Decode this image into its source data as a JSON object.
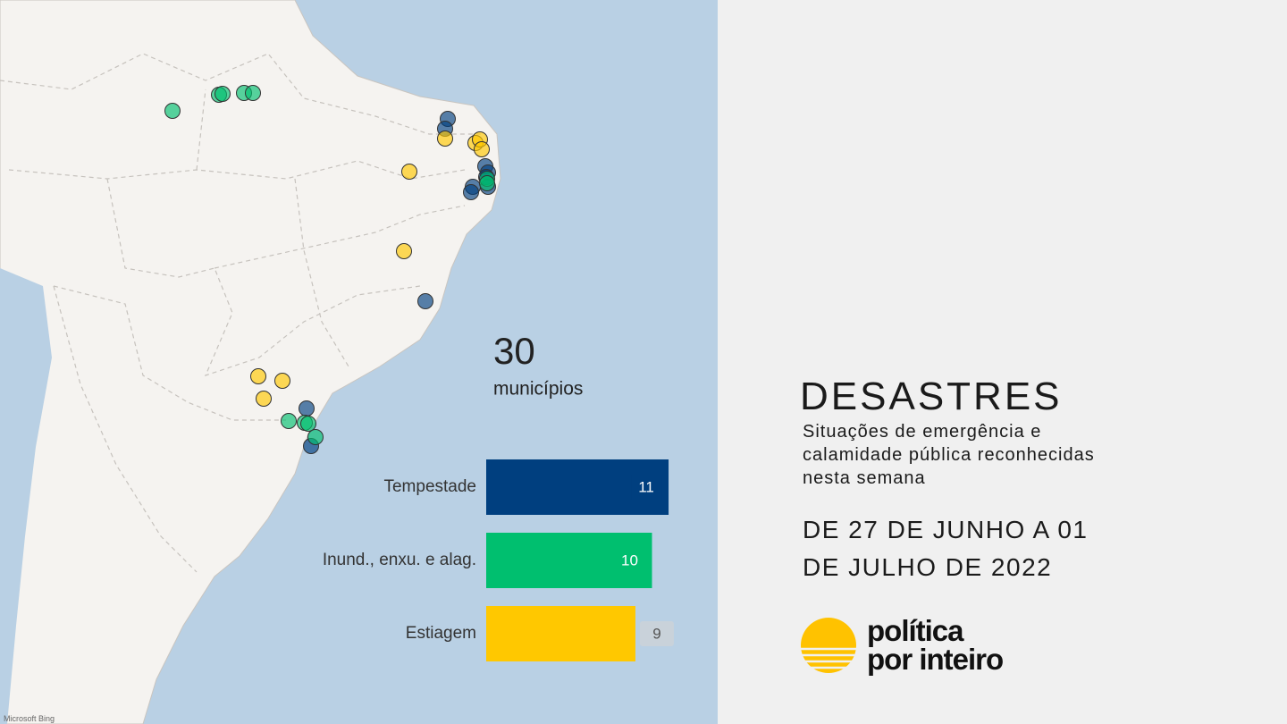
{
  "map": {
    "total": 30,
    "total_label": "municípios",
    "attribution": "Microsoft Bing"
  },
  "chart_data": {
    "type": "bar",
    "orientation": "horizontal",
    "categories": [
      "Tempestade",
      "Inund., enxu. e alag.",
      "Estiagem"
    ],
    "values": [
      11,
      10,
      9
    ],
    "colors": [
      "#003f7f",
      "#00bf6f",
      "#ffc800"
    ]
  },
  "panel": {
    "title": "DESASTRES",
    "subtitle": "Situações de emergência e calamidade pública reconhecidas nesta semana",
    "period": "DE 27 DE JUNHO A 01 DE JULHO DE 2022"
  },
  "logo": {
    "line1": "política",
    "line2": "por inteiro"
  }
}
